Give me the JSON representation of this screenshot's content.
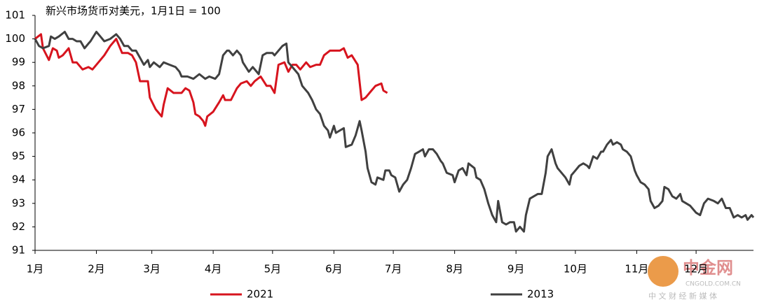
{
  "chart_data": {
    "type": "line",
    "title": "新兴市场货币对美元，1月1日 = 100",
    "xlim": [
      0,
      363
    ],
    "ylim": [
      91,
      101
    ],
    "yticks": [
      91,
      92,
      93,
      94,
      95,
      96,
      97,
      98,
      99,
      100,
      101
    ],
    "xticks": [
      {
        "value": 0,
        "label": "1月"
      },
      {
        "value": 31,
        "label": "2月"
      },
      {
        "value": 59,
        "label": "3月"
      },
      {
        "value": 90,
        "label": "4月"
      },
      {
        "value": 120,
        "label": "5月"
      },
      {
        "value": 151,
        "label": "6月"
      },
      {
        "value": 181,
        "label": "7月"
      },
      {
        "value": 212,
        "label": "8月"
      },
      {
        "value": 243,
        "label": "9月"
      },
      {
        "value": 273,
        "label": "10月"
      },
      {
        "value": 304,
        "label": "11月"
      },
      {
        "value": 334,
        "label": "12月"
      }
    ],
    "series": [
      {
        "name": "2021",
        "color": "#d7141e",
        "x": [
          0,
          3,
          4,
          7,
          9,
          11,
          12,
          14,
          17,
          19,
          21,
          24,
          27,
          29,
          32,
          35,
          38,
          41,
          42,
          44,
          47,
          49,
          51,
          53,
          57,
          58,
          61,
          64,
          65,
          67,
          70,
          74,
          76,
          78,
          80,
          81,
          83,
          85,
          86,
          87,
          90,
          93,
          95,
          96,
          99,
          102,
          104,
          107,
          109,
          111,
          114,
          117,
          119,
          121,
          123,
          126,
          128,
          130,
          132,
          134,
          137,
          139,
          142,
          144,
          146,
          149,
          151,
          154,
          156,
          158,
          160,
          163,
          165,
          167,
          170,
          172,
          175,
          176,
          178
        ],
        "values": [
          100,
          100.2,
          99.6,
          99.1,
          99.6,
          99.5,
          99.2,
          99.3,
          99.6,
          99.0,
          99.0,
          98.7,
          98.8,
          98.7,
          99.0,
          99.3,
          99.7,
          100.0,
          99.8,
          99.4,
          99.4,
          99.3,
          99.0,
          98.2,
          98.2,
          97.5,
          97.0,
          96.7,
          97.2,
          97.9,
          97.7,
          97.7,
          97.9,
          97.8,
          97.3,
          96.8,
          96.7,
          96.5,
          96.3,
          96.7,
          96.9,
          97.3,
          97.6,
          97.4,
          97.4,
          97.9,
          98.1,
          98.2,
          98.0,
          98.2,
          98.4,
          98.0,
          98.0,
          97.7,
          98.9,
          99.0,
          98.6,
          98.9,
          98.9,
          98.7,
          99.0,
          98.8,
          98.9,
          98.9,
          99.3,
          99.5,
          99.5,
          99.5,
          99.6,
          99.2,
          99.3,
          98.9,
          97.4,
          97.5,
          97.8,
          98.0,
          98.1,
          97.8,
          97.7
        ]
      },
      {
        "name": "2013",
        "color": "#404040",
        "x": [
          0,
          2,
          4,
          7,
          8,
          10,
          12,
          15,
          17,
          19,
          21,
          23,
          25,
          27,
          28,
          31,
          33,
          35,
          38,
          41,
          43,
          45,
          47,
          49,
          51,
          53,
          55,
          57,
          58,
          60,
          63,
          65,
          68,
          71,
          73,
          74,
          77,
          80,
          83,
          86,
          88,
          91,
          93,
          95,
          97,
          98,
          100,
          102,
          104,
          105,
          108,
          110,
          113,
          115,
          117,
          120,
          121,
          123,
          125,
          127,
          128,
          130,
          133,
          135,
          138,
          140,
          142,
          144,
          146,
          148,
          149,
          151,
          152,
          154,
          156,
          157,
          160,
          162,
          164,
          165,
          167,
          168,
          170,
          172,
          173,
          176,
          177,
          179,
          180,
          182,
          184,
          186,
          188,
          190,
          192,
          194,
          196,
          197,
          199,
          201,
          203,
          205,
          206,
          208,
          211,
          212,
          214,
          216,
          218,
          219,
          222,
          223,
          225,
          227,
          229,
          231,
          233,
          234,
          236,
          238,
          240,
          242,
          243,
          245,
          247,
          248,
          250,
          252,
          254,
          256,
          258,
          259,
          261,
          263,
          264,
          266,
          268,
          270,
          271,
          273,
          275,
          277,
          279,
          280,
          282,
          284,
          286,
          287,
          289,
          291,
          292,
          294,
          296,
          297,
          299,
          301,
          303,
          304,
          306,
          308,
          310,
          311,
          313,
          315,
          317,
          318,
          320,
          322,
          324,
          326,
          327,
          329,
          331,
          333,
          334,
          336,
          338,
          340,
          343,
          345,
          347,
          349,
          351,
          353,
          355,
          357,
          359,
          360,
          362,
          363
        ],
        "values": [
          100,
          99.7,
          99.6,
          99.7,
          100.1,
          100.0,
          100.1,
          100.3,
          100.0,
          100.0,
          99.9,
          99.9,
          99.6,
          99.8,
          99.9,
          100.3,
          100.1,
          99.9,
          100.0,
          100.2,
          100.0,
          99.7,
          99.7,
          99.5,
          99.5,
          99.2,
          98.9,
          99.1,
          98.8,
          99.0,
          98.8,
          99.0,
          98.9,
          98.8,
          98.6,
          98.4,
          98.4,
          98.3,
          98.5,
          98.3,
          98.4,
          98.3,
          98.5,
          99.3,
          99.5,
          99.5,
          99.3,
          99.5,
          99.3,
          99.0,
          98.6,
          98.8,
          98.5,
          99.3,
          99.4,
          99.4,
          99.3,
          99.5,
          99.7,
          99.8,
          99.0,
          98.8,
          98.5,
          98.0,
          97.7,
          97.4,
          97.0,
          96.8,
          96.3,
          96.1,
          95.8,
          96.3,
          96.0,
          96.1,
          96.2,
          95.4,
          95.5,
          95.9,
          96.5,
          96.1,
          95.2,
          94.5,
          93.9,
          93.8,
          94.1,
          94.0,
          94.4,
          94.4,
          94.2,
          94.1,
          93.5,
          93.8,
          94.0,
          94.5,
          95.1,
          95.2,
          95.3,
          95.0,
          95.3,
          95.3,
          95.1,
          94.8,
          94.7,
          94.3,
          94.2,
          93.9,
          94.4,
          94.5,
          94.2,
          94.7,
          94.5,
          94.1,
          94.0,
          93.6,
          93.0,
          92.5,
          92.2,
          93.1,
          92.2,
          92.1,
          92.2,
          92.2,
          91.8,
          92.0,
          91.8,
          92.5,
          93.2,
          93.3,
          93.4,
          93.4,
          94.3,
          95.0,
          95.3,
          94.7,
          94.5,
          94.3,
          94.1,
          93.8,
          94.2,
          94.4,
          94.6,
          94.7,
          94.6,
          94.5,
          95.0,
          94.9,
          95.2,
          95.2,
          95.5,
          95.7,
          95.5,
          95.6,
          95.5,
          95.3,
          95.2,
          95.0,
          94.4,
          94.2,
          93.9,
          93.8,
          93.6,
          93.1,
          92.8,
          92.9,
          93.1,
          93.7,
          93.6,
          93.3,
          93.2,
          93.4,
          93.1,
          93.0,
          92.9,
          92.7,
          92.6,
          92.5,
          93.0,
          93.2,
          93.1,
          93.0,
          93.2,
          92.8,
          92.8,
          92.4,
          92.5,
          92.4,
          92.5,
          92.3,
          92.5,
          92.4
        ]
      }
    ]
  },
  "watermark": {
    "brand": "中金网",
    "site": "CNGOLD.COM.CN",
    "slogan": "中 文 财 经 新 媒 体"
  }
}
